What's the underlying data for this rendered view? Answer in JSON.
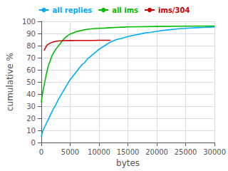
{
  "chart_data": {
    "type": "line",
    "xlabel": "bytes",
    "ylabel": "cumulative %",
    "xlim": [
      0,
      30000
    ],
    "ylim": [
      0,
      100
    ],
    "xticks": [
      0,
      5000,
      10000,
      15000,
      20000,
      25000,
      30000
    ],
    "yticks": [
      0,
      10,
      20,
      30,
      40,
      50,
      60,
      70,
      80,
      90,
      100
    ],
    "grid": true,
    "legend": "top",
    "series": [
      {
        "name": "all replies",
        "color": "#00aaff",
        "x": [
          0,
          100,
          300,
          600,
          1000,
          1500,
          2000,
          2500,
          3000,
          3500,
          4000,
          4500,
          5000,
          5500,
          6000,
          6500,
          7000,
          7500,
          8000,
          8500,
          9000,
          9500,
          10000,
          11000,
          12000,
          13000,
          14000,
          15000,
          16000,
          17000,
          18000,
          19000,
          20000,
          21000,
          22000,
          23000,
          24000,
          25000,
          26000,
          27000,
          28000,
          29000,
          30000
        ],
        "values": [
          5,
          7,
          10,
          13,
          17,
          22,
          27,
          31,
          36,
          40,
          44,
          48,
          52,
          55,
          58,
          61,
          64,
          66,
          69,
          71,
          73,
          75,
          77,
          80,
          83,
          85,
          86,
          87.5,
          88.5,
          89.5,
          90.5,
          91,
          91.8,
          92.5,
          93,
          93.5,
          94,
          94.3,
          94.6,
          94.8,
          95,
          95.2,
          95.4
        ]
      },
      {
        "name": "all ims",
        "color": "#00bb00",
        "x": [
          0,
          100,
          300,
          600,
          800,
          1000,
          1200,
          1500,
          1800,
          2000,
          2500,
          3000,
          3500,
          4000,
          4500,
          5000,
          5500,
          6000,
          6500,
          7000,
          7500,
          8000,
          9000,
          10000,
          11000,
          12000,
          13000,
          14000,
          15000,
          17000,
          20000,
          25000,
          30000
        ],
        "values": [
          33,
          37,
          43,
          50,
          55,
          59,
          63,
          67,
          71,
          73,
          77,
          80,
          83,
          86,
          88,
          89.5,
          90.5,
          91.5,
          92,
          92.5,
          93,
          93.5,
          94,
          94.3,
          94.5,
          94.8,
          95,
          95.2,
          95.4,
          95.6,
          95.8,
          96,
          96.2
        ]
      },
      {
        "name": "ims/304",
        "color": "#cc0000",
        "x": [
          500,
          800,
          1000,
          1500,
          2000,
          2500,
          3000,
          3500,
          4000,
          5000,
          6000,
          7000,
          8000,
          9000,
          10000,
          11000,
          12000
        ],
        "values": [
          76,
          79,
          80.5,
          82,
          83,
          83.5,
          83.8,
          84,
          84.1,
          84.2,
          84.3,
          84.3,
          84.3,
          84.3,
          84.4,
          84.4,
          84.4
        ]
      }
    ]
  }
}
